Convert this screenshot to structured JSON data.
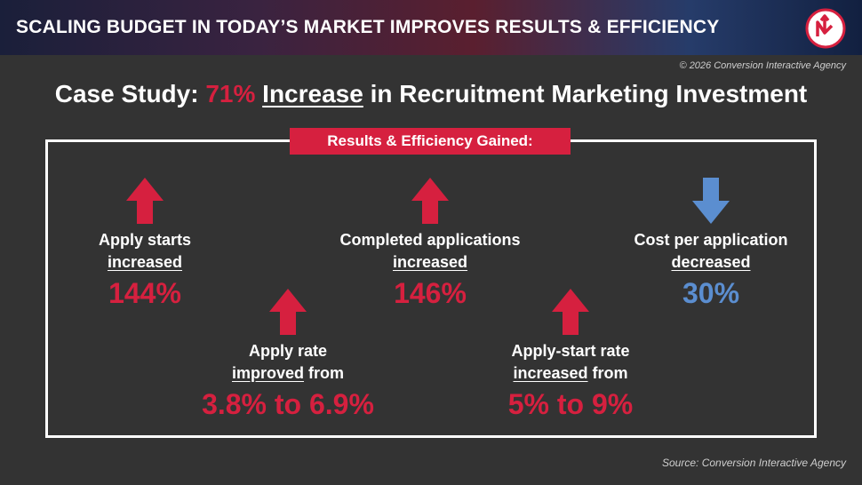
{
  "header": {
    "title": "SCALING BUDGET IN TODAY’S MARKET IMPROVES RESULTS & EFFICIENCY"
  },
  "copyright": "© 2026 Conversion Interactive Agency",
  "headline": {
    "prefix": "Case Study: ",
    "highlight": "71%",
    "emphasis": "Increase",
    "suffix": " in Recruitment Marketing Investment"
  },
  "box_label": "Results & Efficiency Gained:",
  "metrics": [
    {
      "label": "Apply starts",
      "verb": "increased",
      "suffix": "",
      "value": "144%",
      "direction": "up",
      "color": "#d6203f"
    },
    {
      "label": "Completed applications",
      "verb": "increased",
      "suffix": "",
      "value": "146%",
      "direction": "up",
      "color": "#d6203f"
    },
    {
      "label": "Cost per application",
      "verb": "decreased",
      "suffix": "",
      "value": "30%",
      "direction": "down",
      "color": "#5b8ed0"
    },
    {
      "label": "Apply rate",
      "verb": "improved",
      "suffix": " from",
      "value": "3.8% to 6.9%",
      "direction": "up",
      "color": "#d6203f"
    },
    {
      "label": "Apply-start rate",
      "verb": "increased",
      "suffix": " from",
      "value": "5% to 9%",
      "direction": "up",
      "color": "#d6203f"
    }
  ],
  "source": "Source: Conversion Interactive Agency"
}
